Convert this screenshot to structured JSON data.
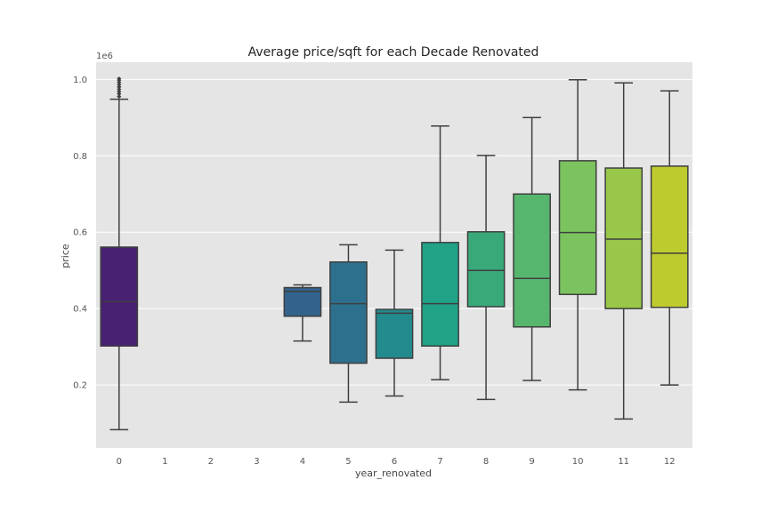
{
  "chart_data": {
    "type": "box",
    "title": "Average price/sqft for each Decade Renovated",
    "xlabel": "year_renovated",
    "ylabel": "price",
    "y_multiplier_label": "1e6",
    "categories": [
      "0",
      "1",
      "2",
      "3",
      "4",
      "5",
      "6",
      "7",
      "8",
      "9",
      "10",
      "11",
      "12"
    ],
    "y_ticks": [
      0.2,
      0.4,
      0.6,
      0.8,
      1.0
    ],
    "y_tick_labels": [
      "0.2",
      "0.4",
      "0.6",
      "0.8",
      "1.0"
    ],
    "ylim": [
      0.035,
      1.045
    ],
    "grid": true,
    "boxes": [
      {
        "category": "0",
        "whisker_low": 0.083,
        "q1": 0.302,
        "median": 0.418,
        "q3": 0.561,
        "whisker_high": 0.948,
        "fliers": [
          0.955,
          0.962,
          0.968,
          0.974,
          0.98,
          0.986,
          0.992,
          0.998,
          1.002
        ],
        "color": "#482173"
      },
      {
        "category": "4",
        "whisker_low": 0.315,
        "q1": 0.38,
        "median": 0.445,
        "q3": 0.455,
        "whisker_high": 0.462,
        "fliers": [],
        "color": "#33638d"
      },
      {
        "category": "5",
        "whisker_low": 0.155,
        "q1": 0.257,
        "median": 0.413,
        "q3": 0.522,
        "whisker_high": 0.567,
        "fliers": [],
        "color": "#2d708e"
      },
      {
        "category": "6",
        "whisker_low": 0.171,
        "q1": 0.27,
        "median": 0.388,
        "q3": 0.398,
        "whisker_high": 0.553,
        "fliers": [],
        "color": "#238a8d"
      },
      {
        "category": "7",
        "whisker_low": 0.214,
        "q1": 0.302,
        "median": 0.413,
        "q3": 0.573,
        "whisker_high": 0.878,
        "fliers": [],
        "color": "#20a386"
      },
      {
        "category": "8",
        "whisker_low": 0.162,
        "q1": 0.405,
        "median": 0.5,
        "q3": 0.601,
        "whisker_high": 0.801,
        "fliers": [],
        "color": "#3aa97a"
      },
      {
        "category": "9",
        "whisker_low": 0.212,
        "q1": 0.352,
        "median": 0.479,
        "q3": 0.7,
        "whisker_high": 0.9,
        "fliers": [],
        "color": "#56b66e"
      },
      {
        "category": "10",
        "whisker_low": 0.187,
        "q1": 0.437,
        "median": 0.599,
        "q3": 0.787,
        "whisker_high": 0.999,
        "fliers": [],
        "color": "#7bc35f"
      },
      {
        "category": "11",
        "whisker_low": 0.111,
        "q1": 0.4,
        "median": 0.582,
        "q3": 0.768,
        "whisker_high": 0.991,
        "fliers": [],
        "color": "#99c74a"
      },
      {
        "category": "12",
        "whisker_low": 0.2,
        "q1": 0.403,
        "median": 0.545,
        "q3": 0.773,
        "whisker_high": 0.97,
        "fliers": [],
        "color": "#bdcb2f"
      }
    ],
    "colors": {
      "plot_background": "#e5e5e5",
      "grid": "#ffffff",
      "line": "#3f3f3f"
    }
  }
}
